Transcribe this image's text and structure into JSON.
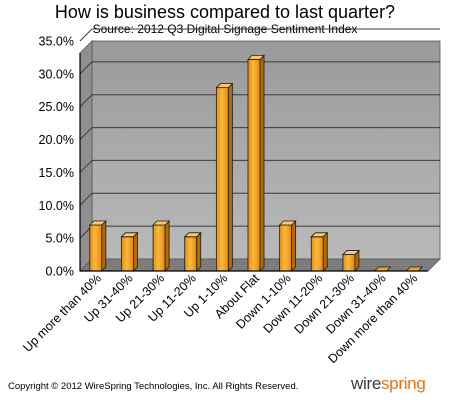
{
  "chart_data": {
    "type": "bar",
    "title": "How is business compared to last quarter?",
    "subtitle": "Source: 2012 Q3 Digital Signage Sentiment Index",
    "categories": [
      "Up more than 40%",
      "Up 31-40%",
      "Up 21-30%",
      "Up 11-20%",
      "Up 1-10%",
      "About Flat",
      "Down 1-10%",
      "Down 11-20%",
      "Down 21-30%",
      "Down 31-40%",
      "Down more than 40%"
    ],
    "values": [
      7.0,
      5.2,
      7.0,
      5.2,
      27.9,
      32.2,
      7.0,
      5.2,
      2.5,
      0.0,
      0.0
    ],
    "ylim": [
      0,
      35
    ],
    "yticks": [
      "0.0%",
      "5.0%",
      "10.0%",
      "15.0%",
      "20.0%",
      "25.0%",
      "30.0%",
      "35.0%"
    ],
    "xlabel": "",
    "ylabel": "",
    "grid": true,
    "legend": "none",
    "colors": {
      "bar_front": "#f5a31a",
      "bar_top": "#fcc96a",
      "bar_side": "#b36a08",
      "bar_outline": "#1a1a1a",
      "wall": "#a6a6a6",
      "floor": "#888888"
    }
  },
  "footer": {
    "copyright": "Copyright © 2012 WireSpring Technologies, Inc. All Rights Reserved.",
    "logo_part1": "wire",
    "logo_part2": "spring"
  }
}
